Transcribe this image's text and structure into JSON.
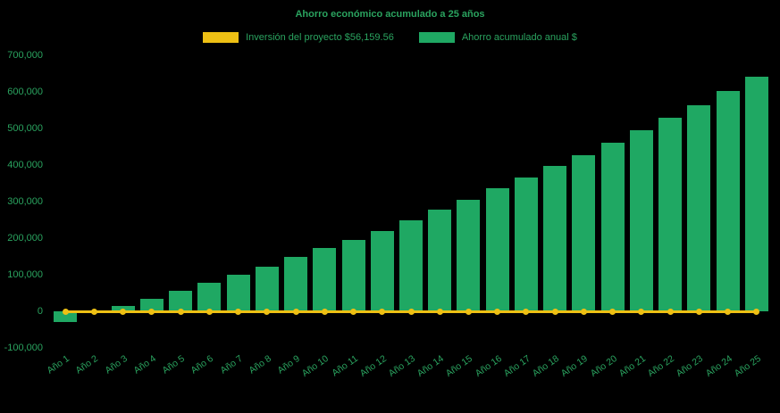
{
  "chart": {
    "title": "Ahorro económico acumulado a 25 años",
    "legend": [
      {
        "label": "Inversión del proyecto $56,159.56",
        "color": "#eec014"
      },
      {
        "label": "Ahorro acumulado anual $",
        "color": "#1fa863"
      }
    ]
  },
  "chart_data": {
    "type": "bar",
    "title": "Ahorro económico acumulado a 25 años",
    "categories": [
      "Año 1",
      "Año 2",
      "Año 3",
      "Año 4",
      "Año 5",
      "Año 6",
      "Año 7",
      "Año 8",
      "Año 9",
      "Año 10",
      "Año 11",
      "Año 12",
      "Año 13",
      "Año 14",
      "Año 15",
      "Año 16",
      "Año 17",
      "Año 18",
      "Año 19",
      "Año 20",
      "Año 21",
      "Año 22",
      "Año 23",
      "Año 24",
      "Año 25"
    ],
    "series": [
      {
        "name": "Inversión del proyecto $56,159.56",
        "type": "line",
        "color": "#eec014",
        "investment_amount": 56159.56,
        "values": [
          0,
          0,
          0,
          0,
          0,
          0,
          0,
          0,
          0,
          0,
          0,
          0,
          0,
          0,
          0,
          0,
          0,
          0,
          0,
          0,
          0,
          0,
          0,
          0,
          0
        ]
      },
      {
        "name": "Ahorro acumulado anual $",
        "type": "bar",
        "color": "#1fa863",
        "values": [
          -30000,
          -3000,
          15000,
          35000,
          57000,
          78000,
          100000,
          122000,
          148000,
          172000,
          196000,
          220000,
          250000,
          278000,
          305000,
          336000,
          367000,
          397000,
          428000,
          462000,
          496000,
          529000,
          563000,
          602000,
          641000
        ]
      }
    ],
    "ylim": [
      -100000,
      700000
    ],
    "y_tick_step": 100000,
    "grid": false,
    "legend_position": "top",
    "background": "#000000",
    "text_color": "#2aa35f"
  }
}
